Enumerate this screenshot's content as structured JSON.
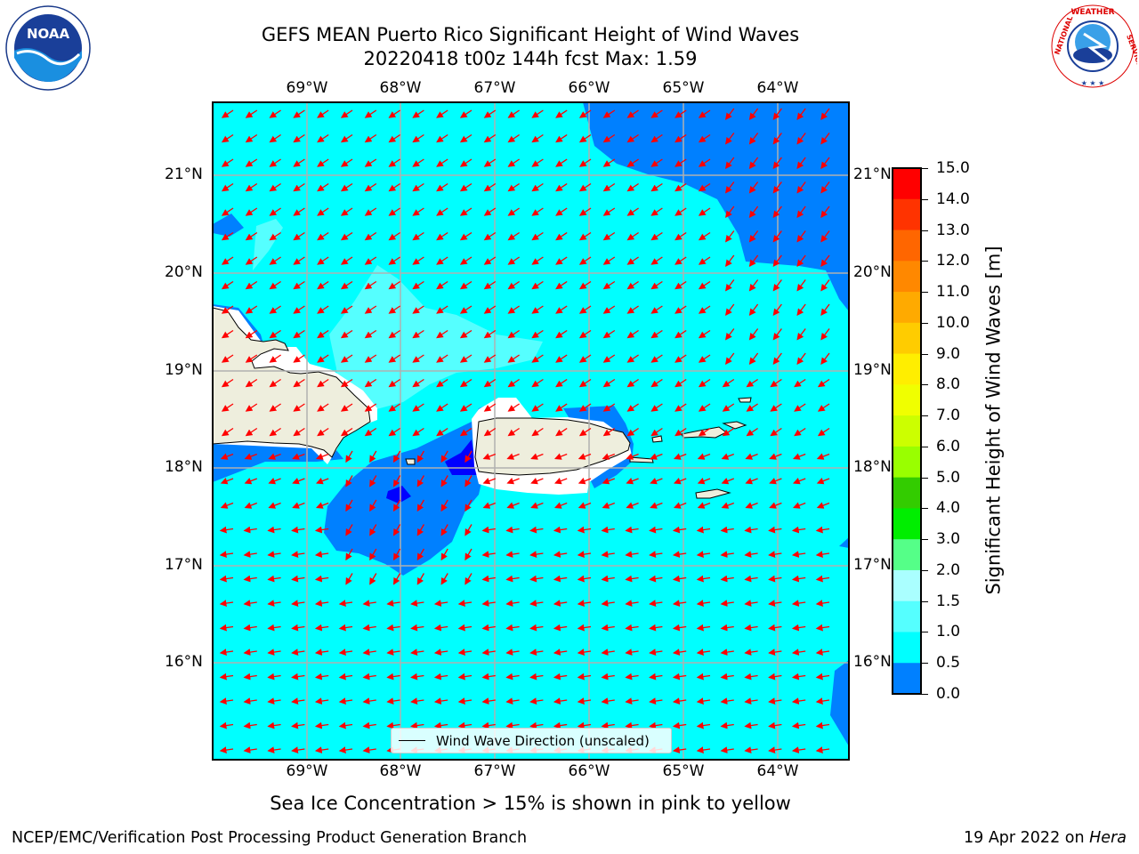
{
  "title": {
    "line1": "GEFS MEAN Puerto Rico Significant Height of Wind Waves",
    "line2": "20220418 t00z 144h fcst   Max: 1.59"
  },
  "map": {
    "lon_labels": [
      "69°W",
      "68°W",
      "67°W",
      "66°W",
      "65°W",
      "64°W"
    ],
    "lat_labels": [
      "21°N",
      "20°N",
      "19°N",
      "18°N",
      "17°N",
      "16°N"
    ],
    "legend_label": "Wind Wave Direction (unscaled)",
    "colors": {
      "water_main": "#00ffff",
      "water_blue": "#0080ff",
      "water_deep": "#0000ff",
      "water_light": "#55ffff",
      "land": "#eeeedd",
      "arrow": "#ff0000",
      "grid": "#b0b0b0"
    }
  },
  "colorbar": {
    "title": "Significant Height of Wind Waves [m]",
    "ticks": [
      "15.0",
      "14.0",
      "13.0",
      "12.0",
      "11.0",
      "10.0",
      "9.0",
      "8.0",
      "7.0",
      "6.0",
      "5.0",
      "4.0",
      "3.0",
      "2.0",
      "1.5",
      "1.0",
      "0.5",
      "0.0"
    ],
    "colors": [
      "#ff0000",
      "#ff3300",
      "#ff6600",
      "#ff8800",
      "#ffaa00",
      "#ffcc00",
      "#ffee00",
      "#f0ff00",
      "#ccff00",
      "#99ff00",
      "#33cc00",
      "#00ee00",
      "#55ff88",
      "#aaffff",
      "#55ffff",
      "#00ffff",
      "#0080ff",
      "#0000ff"
    ]
  },
  "sea_ice_note": "Sea Ice Concentration > 15% is shown in pink to yellow",
  "footer": {
    "left": "NCEP/EMC/Verification Post Processing Product Generation Branch",
    "date": "19 Apr 2022 on ",
    "host": "Hera"
  },
  "logos": {
    "noaa": "NOAA",
    "nws": "NATIONAL WEATHER SERVICE"
  }
}
